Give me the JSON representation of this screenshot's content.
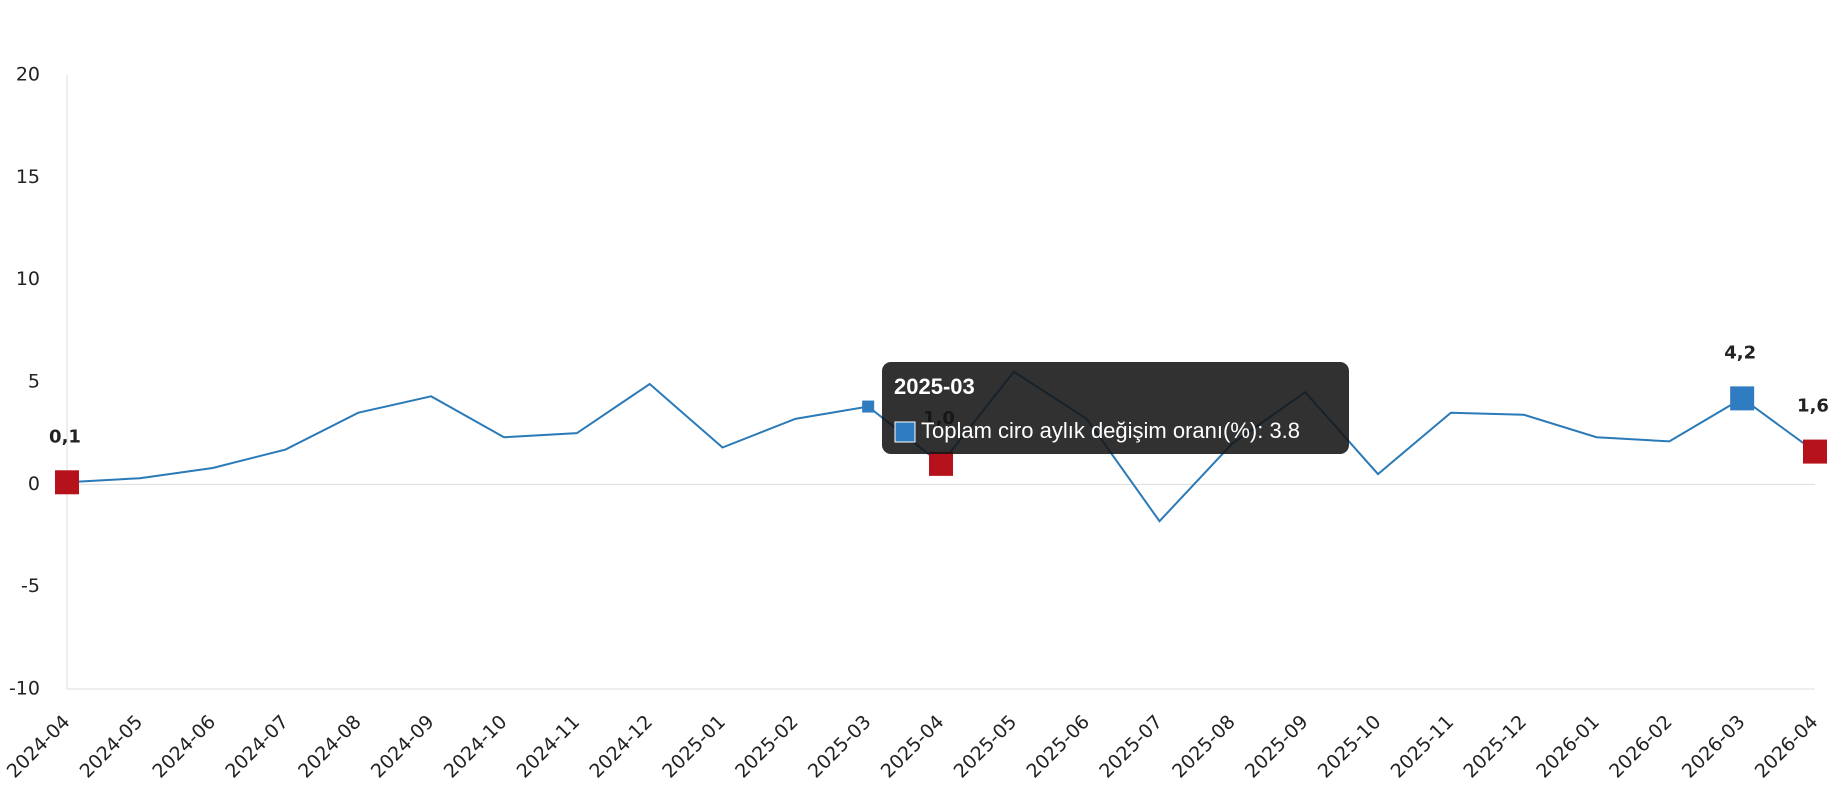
{
  "chart_data": {
    "type": "line",
    "categories": [
      "2024-04",
      "2024-05",
      "2024-06",
      "2024-07",
      "2024-08",
      "2024-09",
      "2024-10",
      "2024-11",
      "2024-12",
      "2025-01",
      "2025-02",
      "2025-03",
      "2025-04",
      "2025-05",
      "2025-06",
      "2025-07",
      "2025-08",
      "2025-09",
      "2025-10",
      "2025-11",
      "2025-12",
      "2026-01",
      "2026-02",
      "2026-03",
      "2026-04"
    ],
    "values": [
      0.1,
      0.3,
      0.8,
      1.7,
      3.5,
      4.3,
      2.3,
      2.5,
      4.9,
      1.8,
      3.2,
      3.8,
      1.0,
      5.5,
      3.2,
      -1.8,
      2.0,
      4.5,
      0.5,
      3.5,
      3.4,
      2.3,
      2.1,
      4.2,
      1.6
    ],
    "value_labels": [
      "0,1",
      null,
      null,
      null,
      null,
      null,
      null,
      null,
      null,
      null,
      null,
      null,
      "1,0",
      null,
      null,
      null,
      null,
      null,
      null,
      null,
      null,
      null,
      null,
      "4,2",
      "1,6"
    ],
    "color": "#2a7ab8",
    "highlight_indices": [
      0,
      12,
      24
    ],
    "highlight_color": "#b5121b",
    "active_index": 23,
    "active_color": "#2f7cc0",
    "ylim": [
      -10,
      20
    ],
    "yticks": [
      -10,
      -5,
      0,
      5,
      10,
      15,
      20
    ],
    "tooltip": {
      "index": 11,
      "text": "Toplam ciro aylık değişim oranı(%): 3.8"
    }
  }
}
